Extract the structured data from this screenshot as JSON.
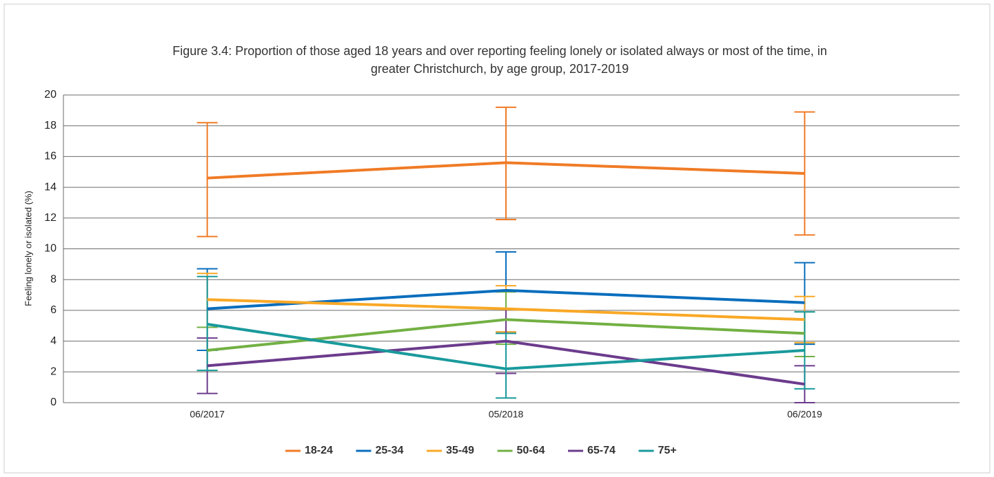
{
  "chart_data": {
    "type": "line",
    "title": [
      "Figure 3.4: Proportion of those aged 18 years and over reporting feeling lonely or isolated always or most of the time, in",
      "greater Christchurch, by age group, 2017-2019"
    ],
    "y_label": "Feeling lonely or isolated (%)",
    "categories": [
      "06/2017",
      "05/2018",
      "06/2019"
    ],
    "ylim": [
      0,
      20
    ],
    "yticks": [
      0,
      2,
      4,
      6,
      8,
      10,
      12,
      14,
      16,
      18,
      20
    ],
    "grid": true,
    "legend": "bottom",
    "series": [
      {
        "name": "18-24",
        "color": "#f07b26",
        "values": [
          14.6,
          15.6,
          14.9
        ],
        "lower": [
          10.8,
          11.9,
          10.9
        ],
        "upper": [
          18.2,
          19.2,
          18.9
        ]
      },
      {
        "name": "25-34",
        "color": "#0a6ebd",
        "values": [
          6.1,
          7.3,
          6.5
        ],
        "lower": [
          3.4,
          4.6,
          3.8
        ],
        "upper": [
          8.7,
          9.8,
          9.1
        ]
      },
      {
        "name": "35-49",
        "color": "#f9a825",
        "values": [
          6.7,
          6.1,
          5.4
        ],
        "lower": [
          4.9,
          4.6,
          3.9
        ],
        "upper": [
          8.4,
          7.6,
          6.9
        ]
      },
      {
        "name": "50-64",
        "color": "#72b043",
        "values": [
          3.4,
          5.4,
          4.5
        ],
        "lower": [
          2.1,
          3.8,
          3.0
        ],
        "upper": [
          4.9,
          7.2,
          5.9
        ]
      },
      {
        "name": "65-74",
        "color": "#6b3b8c",
        "values": [
          2.4,
          4.0,
          1.2
        ],
        "lower": [
          0.6,
          1.9,
          0.0
        ],
        "upper": [
          4.2,
          6.1,
          2.4
        ]
      },
      {
        "name": "75+",
        "color": "#1a9a9c",
        "values": [
          5.1,
          2.2,
          3.4
        ],
        "lower": [
          2.1,
          0.3,
          0.9
        ],
        "upper": [
          8.2,
          4.5,
          5.9
        ]
      }
    ]
  }
}
